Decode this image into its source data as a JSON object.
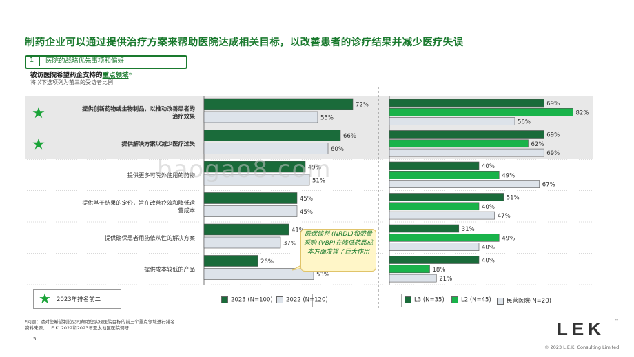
{
  "title": "制药企业可以通过提供治疗方案来帮助医院达成相关目标，以改善患者的诊疗结果并减少医疗失误",
  "section": {
    "number": "1",
    "label": "医院的战略优先事项和偏好"
  },
  "subtitle": {
    "prefix": "被访医院希望药企支持的",
    "highlight": "重点领域",
    "footnote_mark": "*"
  },
  "subtitle2": "将以下选项列为前三的受访者比例",
  "watermark": "baogao8.com",
  "callout": "医保谈判 (NRDL)和带量采购 (VBP)在降低药品成本方面发挥了巨大作用",
  "legend_rank": "2023年排名前二",
  "footnote1": "*问题：请对您希望制药公司帮助您实现医院目标的前三个重点领域进行排名",
  "footnote2": "资料来源：L.E.K. 2022和2023年亚太地区医院调研",
  "page_number": "5",
  "logo": {
    "text": "LEK",
    "tm": "™"
  },
  "copyright": "© 2023 L.E.K. Consulting Limited",
  "colors": {
    "dark_green": "#1a6b3a",
    "bright_green": "#19b34a",
    "light_grey": "#dde3ea",
    "title_green": "#1a7a2e",
    "highlight_bg": "#e8e8e8"
  },
  "chart_data": [
    {
      "type": "bar",
      "orientation": "horizontal",
      "categories": [
        "提供创新药物或生物制品，以推动改善患者的治疗效果",
        "提供解决方案以减少医疗过失",
        "提供更多可院外使用的药物",
        "提供基于结果的定价，旨在改善疗效和降低运营成本",
        "提供确保患者用药依从性的解决方案",
        "提供成本较低的产品"
      ],
      "starred": [
        true,
        true,
        false,
        false,
        false,
        false
      ],
      "series": [
        {
          "name": "2023 (N=100)",
          "values": [
            72,
            66,
            49,
            45,
            41,
            26
          ],
          "color": "#1a6b3a"
        },
        {
          "name": "2022 (N=120)",
          "values": [
            55,
            60,
            51,
            45,
            37,
            53
          ],
          "color": "#dde3ea"
        }
      ],
      "value_suffix": "%"
    },
    {
      "type": "bar",
      "orientation": "horizontal",
      "series": [
        {
          "name": "L3 (N=35)",
          "values": [
            69,
            69,
            40,
            51,
            31,
            40
          ],
          "color": "#1a6b3a"
        },
        {
          "name": "L2 (N=45)",
          "values": [
            82,
            62,
            49,
            40,
            49,
            18
          ],
          "color": "#19b34a"
        },
        {
          "name": "民营医院(N=20)",
          "values": [
            56,
            69,
            67,
            47,
            40,
            21
          ],
          "color": "#dde3ea"
        }
      ],
      "value_suffix": "%"
    }
  ]
}
